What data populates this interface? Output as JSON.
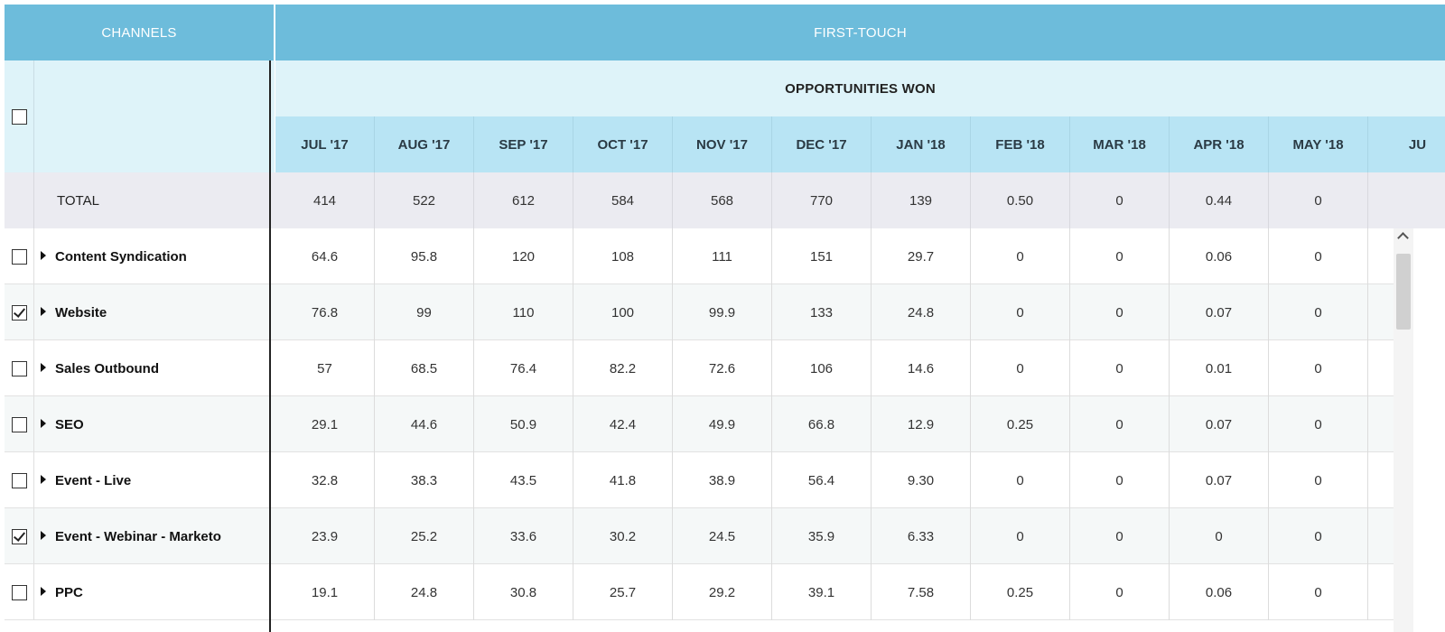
{
  "header": {
    "channels_label": "CHANNELS",
    "first_touch_label": "FIRST-TOUCH",
    "metric_label": "OPPORTUNITIES WON"
  },
  "months": [
    "JUL '17",
    "AUG '17",
    "SEP '17",
    "OCT '17",
    "NOV '17",
    "DEC '17",
    "JAN '18",
    "FEB '18",
    "MAR '18",
    "APR '18",
    "MAY '18",
    "JU"
  ],
  "total": {
    "label": "TOTAL",
    "values": [
      "414",
      "522",
      "612",
      "584",
      "568",
      "770",
      "139",
      "0.50",
      "0",
      "0.44",
      "0",
      ""
    ]
  },
  "rows": [
    {
      "name": "Content Syndication",
      "checked": false,
      "values": [
        "64.6",
        "95.8",
        "120",
        "108",
        "111",
        "151",
        "29.7",
        "0",
        "0",
        "0.06",
        "0"
      ]
    },
    {
      "name": "Website",
      "checked": true,
      "values": [
        "76.8",
        "99",
        "110",
        "100",
        "99.9",
        "133",
        "24.8",
        "0",
        "0",
        "0.07",
        "0"
      ]
    },
    {
      "name": "Sales Outbound",
      "checked": false,
      "values": [
        "57",
        "68.5",
        "76.4",
        "82.2",
        "72.6",
        "106",
        "14.6",
        "0",
        "0",
        "0.01",
        "0"
      ]
    },
    {
      "name": "SEO",
      "checked": false,
      "values": [
        "29.1",
        "44.6",
        "50.9",
        "42.4",
        "49.9",
        "66.8",
        "12.9",
        "0.25",
        "0",
        "0.07",
        "0"
      ]
    },
    {
      "name": "Event - Live",
      "checked": false,
      "values": [
        "32.8",
        "38.3",
        "43.5",
        "41.8",
        "38.9",
        "56.4",
        "9.30",
        "0",
        "0",
        "0.07",
        "0"
      ]
    },
    {
      "name": "Event - Webinar - Marketo",
      "checked": true,
      "values": [
        "23.9",
        "25.2",
        "33.6",
        "30.2",
        "24.5",
        "35.9",
        "6.33",
        "0",
        "0",
        "0",
        "0"
      ]
    },
    {
      "name": "PPC",
      "checked": false,
      "values": [
        "19.1",
        "24.8",
        "30.8",
        "25.7",
        "29.2",
        "39.1",
        "7.58",
        "0.25",
        "0",
        "0.06",
        "0"
      ]
    }
  ],
  "select_all_checked": false
}
